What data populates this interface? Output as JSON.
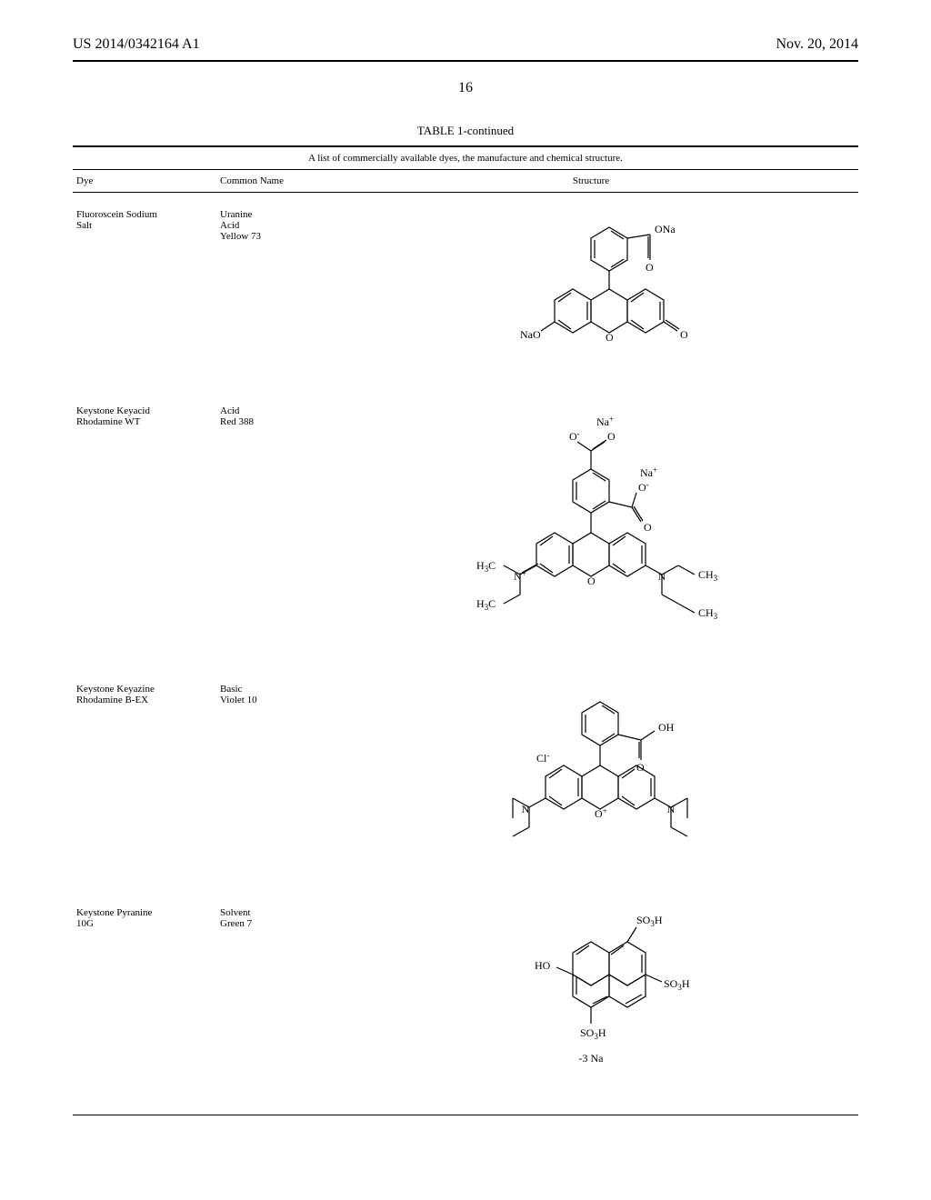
{
  "header": {
    "patent_number": "US 2014/0342164 A1",
    "date": "Nov. 20, 2014"
  },
  "page_number": "16",
  "table": {
    "title": "TABLE 1-continued",
    "caption": "A list of commercially available dyes, the manufacture and chemical structure.",
    "columns": {
      "dye": "Dye",
      "common": "Common Name",
      "structure": "Structure"
    },
    "rows": [
      {
        "dye": "Fluoroscein Sodium\nSalt",
        "common": "Uranine\nAcid\nYellow 73",
        "structure": {
          "type": "fluorescein",
          "labels": [
            "ONa",
            "O",
            "NaO",
            "O",
            "O"
          ]
        }
      },
      {
        "dye": "Keystone Keyacid\nRhodamine WT",
        "common": "Acid\nRed 388",
        "structure": {
          "type": "rhodamine_wt",
          "labels": [
            "Na+",
            "O-",
            "O",
            "Na+",
            "O-",
            "O",
            "H3C",
            "N+",
            "O",
            "N",
            "CH3",
            "H3C",
            "CH3"
          ]
        }
      },
      {
        "dye": "Keystone Keyazine\nRhodamine B-EX",
        "common": "Basic\nViolet 10",
        "structure": {
          "type": "rhodamine_b",
          "labels": [
            "OH",
            "O",
            "Cl-",
            "N",
            "O+",
            "N"
          ]
        }
      },
      {
        "dye": "Keystone Pyranine\n10G",
        "common": "Solvent\nGreen 7",
        "structure": {
          "type": "pyranine",
          "labels": [
            "SO3H",
            "HO",
            "SO3H",
            "SO3H",
            "-3 Na"
          ]
        }
      }
    ]
  },
  "style": {
    "text_color": "#000000",
    "bg_color": "#ffffff",
    "font_family": "Times New Roman",
    "body_fontsize": 11,
    "header_fontsize": 16,
    "stroke": "#000000",
    "stroke_width": 1.2
  }
}
